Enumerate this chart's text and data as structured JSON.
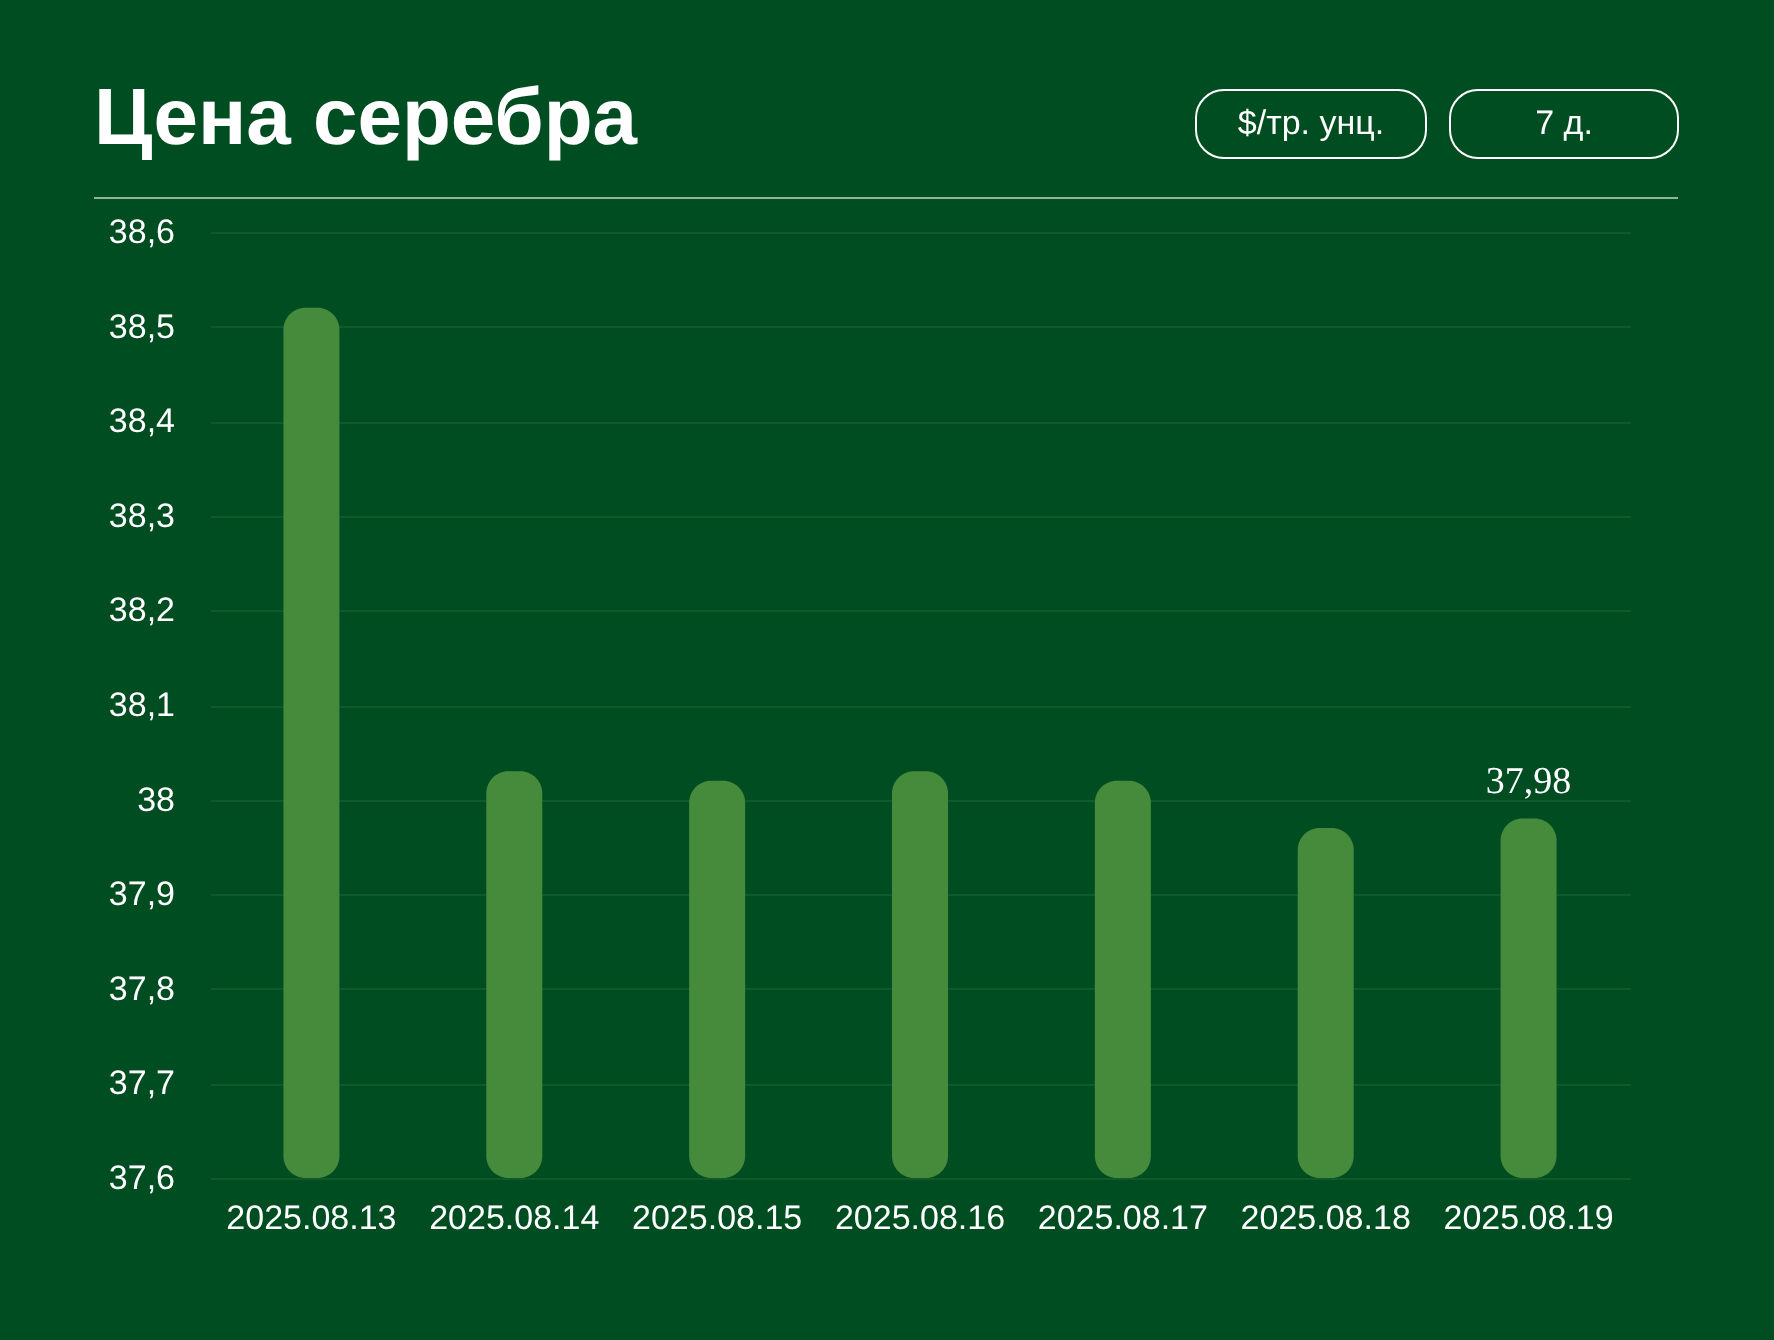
{
  "chart_data": {
    "type": "bar",
    "title": "Цена серебра",
    "annotations": [
      "$/тр. унц.",
      "7 д."
    ],
    "categories": [
      "2025.08.13",
      "2025.08.14",
      "2025.08.15",
      "2025.08.16",
      "2025.08.17",
      "2025.08.18",
      "2025.08.19"
    ],
    "values": [
      38.52,
      38.03,
      38.02,
      38.03,
      38.02,
      37.97,
      37.98
    ],
    "value_labels": [
      null,
      null,
      null,
      null,
      null,
      null,
      "37,98"
    ],
    "color": "#468a3c",
    "ylim": [
      37.6,
      38.6
    ],
    "yticks": [
      {
        "value": 37.6,
        "label": "37,6"
      },
      {
        "value": 37.7,
        "label": "37,7"
      },
      {
        "value": 37.8,
        "label": "37,8"
      },
      {
        "value": 37.9,
        "label": "37,9"
      },
      {
        "value": 38,
        "label": "38"
      },
      {
        "value": 38.1,
        "label": "38,1"
      },
      {
        "value": 38.2,
        "label": "38,2"
      },
      {
        "value": 38.3,
        "label": "38,3"
      },
      {
        "value": 38.4,
        "label": "38,4"
      },
      {
        "value": 38.5,
        "label": "38,5"
      },
      {
        "value": 38.6,
        "label": "38,6"
      }
    ],
    "grid": "y"
  }
}
